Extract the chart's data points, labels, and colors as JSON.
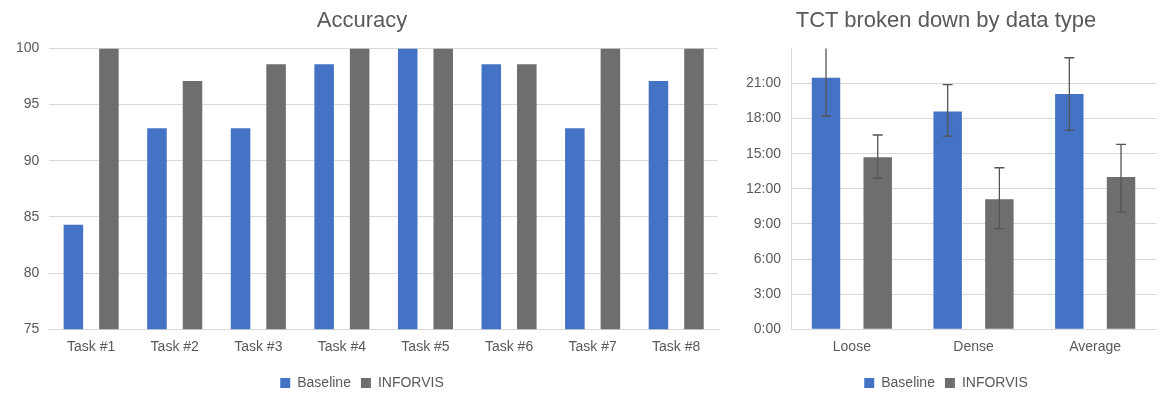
{
  "chart_data": [
    {
      "type": "bar",
      "title": "Accuracy",
      "categories": [
        "Task #1",
        "Task #2",
        "Task #3",
        "Task #4",
        "Task #5",
        "Task #6",
        "Task #7",
        "Task #8"
      ],
      "series": [
        {
          "name": "Baseline",
          "color": "#4472c4",
          "values": [
            84.3,
            92.9,
            92.9,
            98.6,
            100,
            98.6,
            92.9,
            97.1
          ]
        },
        {
          "name": "INFORVIS",
          "color": "#6e6e6e",
          "values": [
            100,
            97.1,
            98.6,
            100,
            100,
            98.6,
            100,
            100
          ]
        }
      ],
      "ylim": [
        75,
        100
      ],
      "yticks": [
        75,
        80,
        85,
        90,
        95,
        100
      ],
      "grid": "y",
      "legend": "bottom"
    },
    {
      "type": "bar",
      "title": "TCT broken down by data type",
      "categories": [
        "Loose",
        "Dense",
        "Average"
      ],
      "series": [
        {
          "name": "Baseline",
          "color": "#4472c4",
          "values": [
            21.5,
            18.6,
            20.1
          ],
          "errors": [
            [
              18.2,
              24
            ],
            [
              16.5,
              20.9
            ],
            [
              17.0,
              23.2
            ]
          ]
        },
        {
          "name": "INFORVIS",
          "color": "#6e6e6e",
          "values": [
            14.7,
            11.1,
            13.0
          ],
          "errors": [
            [
              12.9,
              16.6
            ],
            [
              8.6,
              13.8
            ],
            [
              10.0,
              15.8
            ]
          ]
        }
      ],
      "ylim": [
        0,
        24
      ],
      "yticks": [
        {
          "value": 0,
          "label": "0:00"
        },
        {
          "value": 3,
          "label": "3:00"
        },
        {
          "value": 6,
          "label": "6:00"
        },
        {
          "value": 9,
          "label": "9:00"
        },
        {
          "value": 12,
          "label": "12:00"
        },
        {
          "value": 15,
          "label": "15:00"
        },
        {
          "value": 18,
          "label": "18:00"
        },
        {
          "value": 21,
          "label": "21:00"
        }
      ],
      "grid": "y",
      "legend": "bottom"
    }
  ]
}
